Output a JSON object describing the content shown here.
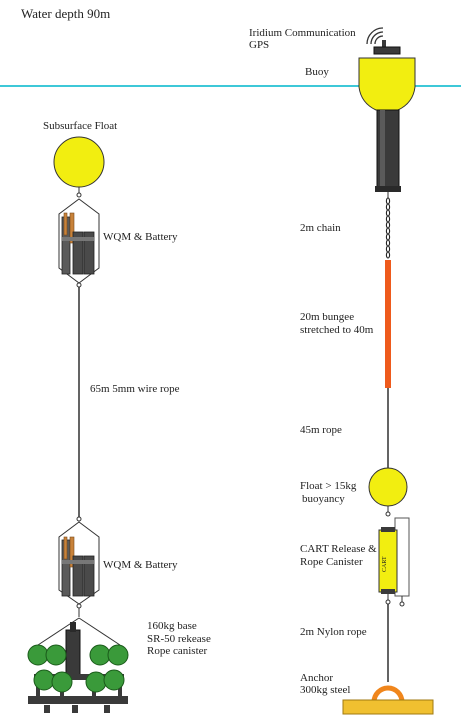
{
  "title": "Water depth 90m",
  "colors": {
    "water_line": "#3ec8d8",
    "float_yellow": "#f2ee10",
    "bungee_orange": "#ee5a1c",
    "anchor_orange": "#f0861c",
    "base_plate_yellow": "#f0c030",
    "sphere_green": "#3a9a3a",
    "buoy_tube": "#3a3a3a"
  },
  "labels": {
    "iridium": "Iridium Communication",
    "gps": "GPS",
    "buoy": "Buoy",
    "subsurface_float": "Subsurface Float",
    "wqm_top": "WQM & Battery",
    "wire_rope": "65m 5mm wire rope",
    "wqm_bottom": "WQM & Battery",
    "base_line1": "160kg base",
    "base_line2": "SR-50 rekease",
    "base_line3": "Rope canister",
    "chain": "2m chain",
    "bungee_line1": "20m bungee",
    "bungee_line2": "stretched to 40m",
    "rope": "45m rope",
    "float_line1": "Float > 15kg",
    "float_line2": "buoyancy",
    "cart_line1": "CART Release &",
    "cart_line2": "Rope Canister",
    "cart_tag": "CART",
    "nylon": "2m Nylon rope",
    "anchor_line1": "Anchor",
    "anchor_line2": "300kg steel"
  }
}
